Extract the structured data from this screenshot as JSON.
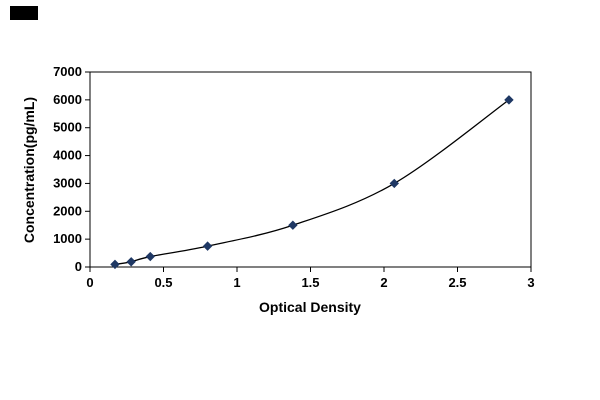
{
  "page": {
    "background_color": "#ffffff",
    "corner_mark_color": "#000000"
  },
  "chart_data": {
    "type": "line",
    "title": "",
    "xlabel": "Optical Density",
    "ylabel": "Concentration(pg/mL)",
    "x": [
      0.17,
      0.28,
      0.41,
      0.8,
      1.38,
      2.07,
      2.85
    ],
    "y": [
      93.75,
      187.5,
      375,
      750,
      1500,
      3000,
      6000
    ],
    "xlim": [
      0,
      3
    ],
    "ylim": [
      0,
      7000
    ],
    "xticks": [
      0,
      0.5,
      1,
      1.5,
      2,
      2.5,
      3
    ],
    "yticks": [
      0,
      1000,
      2000,
      3000,
      4000,
      5000,
      6000,
      7000
    ],
    "grid": false,
    "legend": null,
    "marker": "diamond",
    "marker_color": "#1F3864",
    "line_color": "#000000",
    "frame_color": "#000000"
  }
}
